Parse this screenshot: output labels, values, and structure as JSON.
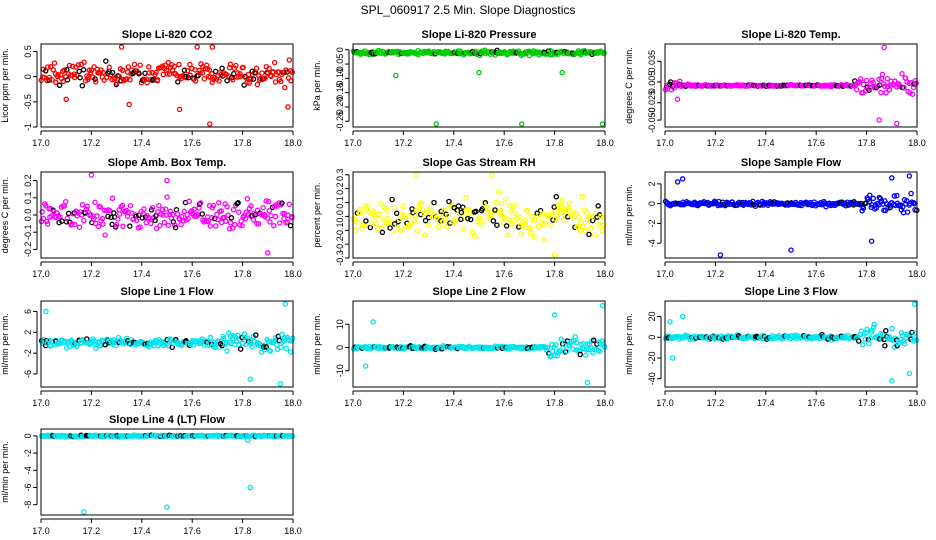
{
  "figure": {
    "title": "SPL_060917  2.5 Min. Slope Diagnostics"
  },
  "chart_data": [
    {
      "id": "co2",
      "type": "scatter",
      "title": "Slope Li-820 CO2",
      "ylabel": "Licor ppm per min.",
      "color": "#ff0000",
      "xlim": [
        17.0,
        18.0
      ],
      "xticks": [
        "17.0",
        "17.2",
        "17.4",
        "17.6",
        "17.8",
        "18.0"
      ],
      "ylim": [
        -1.0,
        0.65
      ],
      "yticks": [
        -1,
        -0.5,
        0,
        0.5
      ],
      "ytick_labels": [
        "-1",
        "-0.5",
        "0",
        "0.5"
      ],
      "base": 0.05,
      "spread": 0.35,
      "outliers": [
        [
          17.32,
          0.62
        ],
        [
          17.62,
          0.65
        ],
        [
          17.68,
          0.62
        ],
        [
          17.67,
          -1.02
        ],
        [
          17.35,
          -0.55
        ],
        [
          17.55,
          -0.65
        ],
        [
          17.98,
          -0.6
        ],
        [
          17.1,
          -0.45
        ]
      ]
    },
    {
      "id": "pressure",
      "type": "scatter",
      "title": "Slope Li-820 Pressure",
      "ylabel": "kPa per min.",
      "color": "#00cc00",
      "xlim": [
        17.0,
        18.0
      ],
      "xticks": [
        "17.0",
        "17.2",
        "17.4",
        "17.6",
        "17.8",
        "18.0"
      ],
      "ylim": [
        -0.27,
        0.02
      ],
      "yticks": [
        0,
        -0.05,
        -0.1,
        -0.15,
        -0.2,
        -0.25
      ],
      "ytick_labels": [
        "0",
        "-0.05",
        "-0.10",
        "-0.15",
        "-0.20",
        "-0.25"
      ],
      "base": -0.01,
      "spread": 0.012,
      "outliers": [
        [
          17.17,
          -0.09
        ],
        [
          17.33,
          -0.265
        ],
        [
          17.5,
          -0.08
        ],
        [
          17.67,
          -0.26
        ],
        [
          17.83,
          -0.08
        ],
        [
          17.99,
          -0.26
        ]
      ]
    },
    {
      "id": "temp",
      "type": "scatter",
      "title": "Slope Li-820 Temp.",
      "ylabel": "degrees C per min.",
      "color": "#ff00ff",
      "xlim": [
        17.0,
        18.0
      ],
      "xticks": [
        "17.0",
        "17.2",
        "17.4",
        "17.6",
        "17.8",
        "18.0"
      ],
      "ylim": [
        -0.06,
        0.06
      ],
      "yticks": [
        0.035,
        0.005,
        -0.025,
        -0.05
      ],
      "ytick_labels": [
        "0.035",
        "0.005",
        "-0.025",
        "-0.050"
      ],
      "base": 0.0,
      "spread": 0.002,
      "noisy_end": 17.75,
      "noisy_spread": 0.02,
      "noisy_start": 17.06,
      "outliers": [
        [
          17.87,
          0.055
        ],
        [
          17.92,
          -0.055
        ],
        [
          17.85,
          -0.05
        ],
        [
          17.05,
          -0.02
        ]
      ]
    },
    {
      "id": "ambbox",
      "type": "scatter",
      "title": "Slope Amb. Box Temp.",
      "ylabel": "degrees C per min.",
      "color": "#ff00ff",
      "xlim": [
        17.0,
        18.0
      ],
      "xticks": [
        "17.0",
        "17.2",
        "17.4",
        "17.6",
        "17.8",
        "18.0"
      ],
      "ylim": [
        -0.25,
        0.25
      ],
      "yticks": [
        -0.2,
        -0.1,
        0,
        0.1,
        0.2
      ],
      "ytick_labels": [
        "-0.2",
        "-0.1",
        "0.0",
        "0.1",
        "0.2"
      ],
      "base": 0.0,
      "spread": 0.13,
      "outliers": [
        [
          17.2,
          0.25
        ],
        [
          17.5,
          0.2
        ],
        [
          17.9,
          -0.22
        ]
      ]
    },
    {
      "id": "rh",
      "type": "scatter",
      "title": "Slope Gas Stream RH",
      "ylabel": "percent per min.",
      "color": "#ffff00",
      "xlim": [
        17.0,
        18.0
      ],
      "xticks": [
        "17.0",
        "17.2",
        "17.4",
        "17.6",
        "17.8",
        "18.0"
      ],
      "ylim": [
        -0.3,
        0.32
      ],
      "yticks": [
        -0.3,
        -0.2,
        -0.1,
        0,
        0.1,
        0.2,
        0.3
      ],
      "ytick_labels": [
        "-0.3",
        "-0.2",
        "-0.1",
        "0.0",
        "0.1",
        "0.2",
        "0.3"
      ],
      "base": 0.0,
      "spread": 0.2,
      "outliers": [
        [
          17.25,
          0.3
        ],
        [
          17.55,
          0.3
        ],
        [
          17.8,
          -0.3
        ]
      ]
    },
    {
      "id": "sampleflow",
      "type": "scatter",
      "title": "Slope Sample Flow",
      "ylabel": "ml/min per min.",
      "color": "#0000ff",
      "xlim": [
        17.0,
        18.0
      ],
      "xticks": [
        "17.0",
        "17.2",
        "17.4",
        "17.6",
        "17.8",
        "18.0"
      ],
      "ylim": [
        -5.5,
        3.2
      ],
      "yticks": [
        2,
        0,
        -2,
        -4
      ],
      "ytick_labels": [
        "2",
        "0",
        "-2",
        "-4"
      ],
      "base": 0.0,
      "spread": 0.35,
      "noisy_end": 17.78,
      "noisy_spread": 1.2,
      "outliers": [
        [
          17.07,
          2.5
        ],
        [
          17.05,
          2.2
        ],
        [
          17.22,
          -5.2
        ],
        [
          17.5,
          -4.7
        ],
        [
          17.9,
          2.6
        ],
        [
          17.97,
          2.8
        ],
        [
          17.82,
          -3.8
        ]
      ]
    },
    {
      "id": "line1",
      "type": "scatter",
      "title": "Slope Line 1 Flow",
      "ylabel": "ml/min per min.",
      "color": "#00e5ee",
      "xlim": [
        17.0,
        18.0
      ],
      "xticks": [
        "17.0",
        "17.2",
        "17.4",
        "17.6",
        "17.8",
        "18.0"
      ],
      "ylim": [
        -8.5,
        8.0
      ],
      "yticks": [
        6,
        2,
        -2,
        -6
      ],
      "ytick_labels": [
        "6",
        "2",
        "-2",
        "-6"
      ],
      "base": 0.0,
      "spread": 1.2,
      "noisy_end": 17.72,
      "noisy_spread": 3.0,
      "outliers": [
        [
          17.02,
          6.0
        ],
        [
          17.97,
          7.5
        ],
        [
          17.95,
          -8
        ],
        [
          17.83,
          -7
        ]
      ]
    },
    {
      "id": "line2",
      "type": "scatter",
      "title": "Slope Line 2 Flow",
      "ylabel": "ml/min per min.",
      "color": "#00e5ee",
      "xlim": [
        17.0,
        18.0
      ],
      "xticks": [
        "17.0",
        "17.2",
        "17.4",
        "17.6",
        "17.8",
        "18.0"
      ],
      "ylim": [
        -17,
        20
      ],
      "yticks": [
        10,
        0,
        -10
      ],
      "ytick_labels": [
        "10",
        "0",
        "-10"
      ],
      "base": 0.0,
      "spread": 1.0,
      "noisy_end": 17.76,
      "noisy_spread": 6.0,
      "outliers": [
        [
          17.08,
          11
        ],
        [
          17.05,
          -8
        ],
        [
          17.99,
          18
        ],
        [
          17.93,
          -15
        ],
        [
          17.8,
          14
        ]
      ]
    },
    {
      "id": "line3",
      "type": "scatter",
      "title": "Slope Line 3 Flow",
      "ylabel": "ml/min per min.",
      "color": "#00e5ee",
      "xlim": [
        17.0,
        18.0
      ],
      "xticks": [
        "17.0",
        "17.2",
        "17.4",
        "17.6",
        "17.8",
        "18.0"
      ],
      "ylim": [
        -48,
        35
      ],
      "yticks": [
        20,
        0,
        -20,
        -40
      ],
      "ytick_labels": [
        "20",
        "0",
        "-20",
        "-40"
      ],
      "base": 0.0,
      "spread": 3.0,
      "noisy_end": 17.76,
      "noisy_spread": 14.0,
      "outliers": [
        [
          17.07,
          20
        ],
        [
          17.02,
          15
        ],
        [
          17.03,
          -20
        ],
        [
          17.99,
          32
        ],
        [
          17.9,
          -42
        ],
        [
          17.97,
          -35
        ]
      ]
    },
    {
      "id": "line4",
      "type": "scatter",
      "title": "Slope Line 4 (LT) Flow",
      "ylabel": "ml/min per min.",
      "color": "#00e5ee",
      "xlim": [
        17.0,
        18.0
      ],
      "xticks": [
        "17.0",
        "17.2",
        "17.4",
        "17.6",
        "17.8",
        "18.0"
      ],
      "ylim": [
        -9.2,
        0.8
      ],
      "yticks": [
        0,
        -2,
        -4,
        -6,
        -8
      ],
      "ytick_labels": [
        "0",
        "-2",
        "-4",
        "-6",
        "-8"
      ],
      "base": 0.0,
      "spread": 0.12,
      "outliers": [
        [
          17.17,
          -9
        ],
        [
          17.5,
          -8.3
        ],
        [
          17.83,
          -6.0
        ],
        [
          17.82,
          -0.5
        ]
      ]
    }
  ]
}
